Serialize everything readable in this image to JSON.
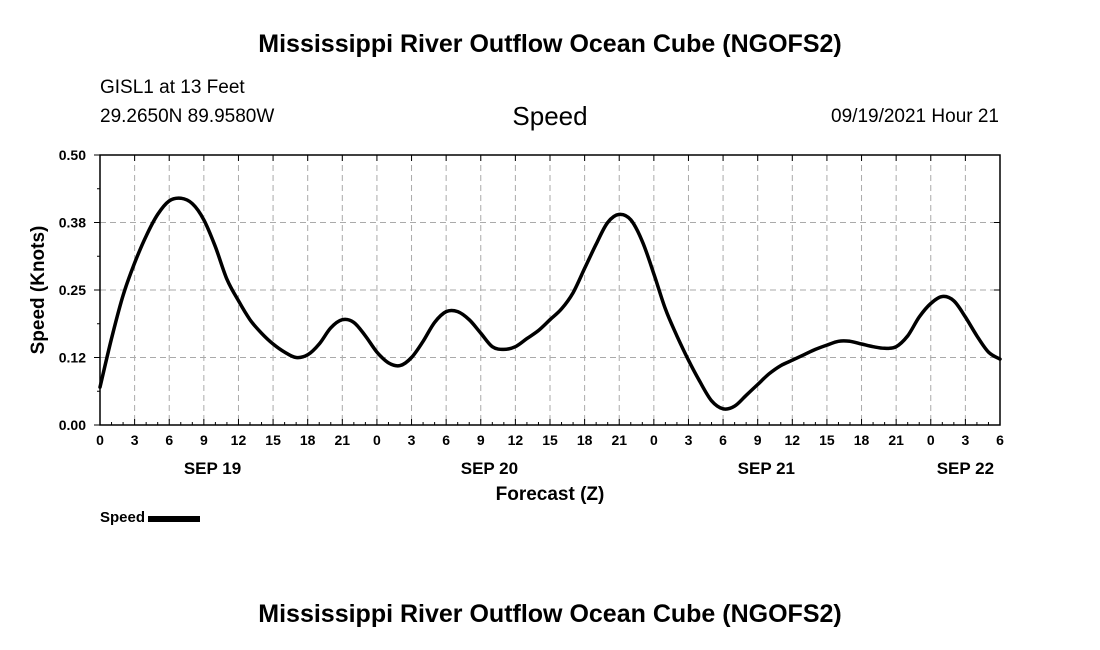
{
  "page": {
    "top_title": "Mississippi River Outflow Ocean Cube (NGOFS2)",
    "bottom_title": "Mississippi River Outflow Ocean Cube (NGOFS2)",
    "station": "GISL1 at 13 Feet",
    "coords": "29.2650N  89.9580W",
    "variable_title": "Speed",
    "datetime": "09/19/2021 Hour 21",
    "legend_label": "Speed",
    "colors": {
      "line": "#000000",
      "grid": "#aaaaaa"
    }
  },
  "chart_data": {
    "type": "line",
    "xlabel": "Forecast (Z)",
    "ylabel": "Speed (Knots)",
    "xlim": [
      0,
      78
    ],
    "ylim": [
      0,
      0.5
    ],
    "y_ticks": [
      0,
      0.125,
      0.25,
      0.375,
      0.5
    ],
    "y_tick_labels": [
      "0.00",
      "0.12",
      "0.25",
      "0.38",
      "0.50"
    ],
    "x_ticks": [
      0,
      3,
      6,
      9,
      12,
      15,
      18,
      21,
      24,
      27,
      30,
      33,
      36,
      39,
      42,
      45,
      48,
      51,
      54,
      57,
      60,
      63,
      66,
      69,
      72,
      75,
      78
    ],
    "x_tick_labels": [
      "0",
      "3",
      "6",
      "9",
      "12",
      "15",
      "18",
      "21",
      "0",
      "3",
      "6",
      "9",
      "12",
      "15",
      "18",
      "21",
      "0",
      "3",
      "6",
      "9",
      "12",
      "15",
      "18",
      "21",
      "0",
      "3",
      "6"
    ],
    "date_labels": [
      {
        "hour": 9.75,
        "label": "SEP 19"
      },
      {
        "hour": 33.75,
        "label": "SEP 20"
      },
      {
        "hour": 57.75,
        "label": "SEP 21"
      },
      {
        "hour": 75,
        "label": "SEP 22"
      }
    ],
    "grid": true,
    "series": [
      {
        "name": "Speed",
        "x": [
          0,
          1,
          2,
          3,
          4,
          5,
          6,
          7,
          8,
          9,
          10,
          11,
          12,
          13,
          14,
          15,
          16,
          17,
          18,
          19,
          20,
          21,
          22,
          23,
          24,
          25,
          26,
          27,
          28,
          29,
          30,
          31,
          32,
          33,
          34,
          35,
          36,
          37,
          38,
          39,
          40,
          41,
          42,
          43,
          44,
          45,
          46,
          47,
          48,
          49,
          50,
          51,
          52,
          53,
          54,
          55,
          56,
          57,
          58,
          59,
          60,
          61,
          62,
          63,
          64,
          65,
          66,
          67,
          68,
          69,
          70,
          71,
          72,
          73,
          74,
          75,
          76,
          77,
          78
        ],
        "values": [
          0.07,
          0.16,
          0.24,
          0.3,
          0.35,
          0.39,
          0.415,
          0.42,
          0.41,
          0.38,
          0.33,
          0.27,
          0.23,
          0.195,
          0.17,
          0.15,
          0.135,
          0.125,
          0.13,
          0.15,
          0.18,
          0.195,
          0.19,
          0.165,
          0.135,
          0.115,
          0.11,
          0.125,
          0.155,
          0.19,
          0.21,
          0.21,
          0.195,
          0.17,
          0.145,
          0.14,
          0.145,
          0.16,
          0.175,
          0.195,
          0.215,
          0.245,
          0.29,
          0.335,
          0.375,
          0.39,
          0.38,
          0.34,
          0.28,
          0.215,
          0.165,
          0.12,
          0.08,
          0.045,
          0.03,
          0.035,
          0.055,
          0.075,
          0.095,
          0.11,
          0.12,
          0.13,
          0.14,
          0.148,
          0.155,
          0.155,
          0.15,
          0.145,
          0.142,
          0.145,
          0.165,
          0.2,
          0.225,
          0.238,
          0.23,
          0.2,
          0.165,
          0.135,
          0.122
        ]
      }
    ]
  }
}
